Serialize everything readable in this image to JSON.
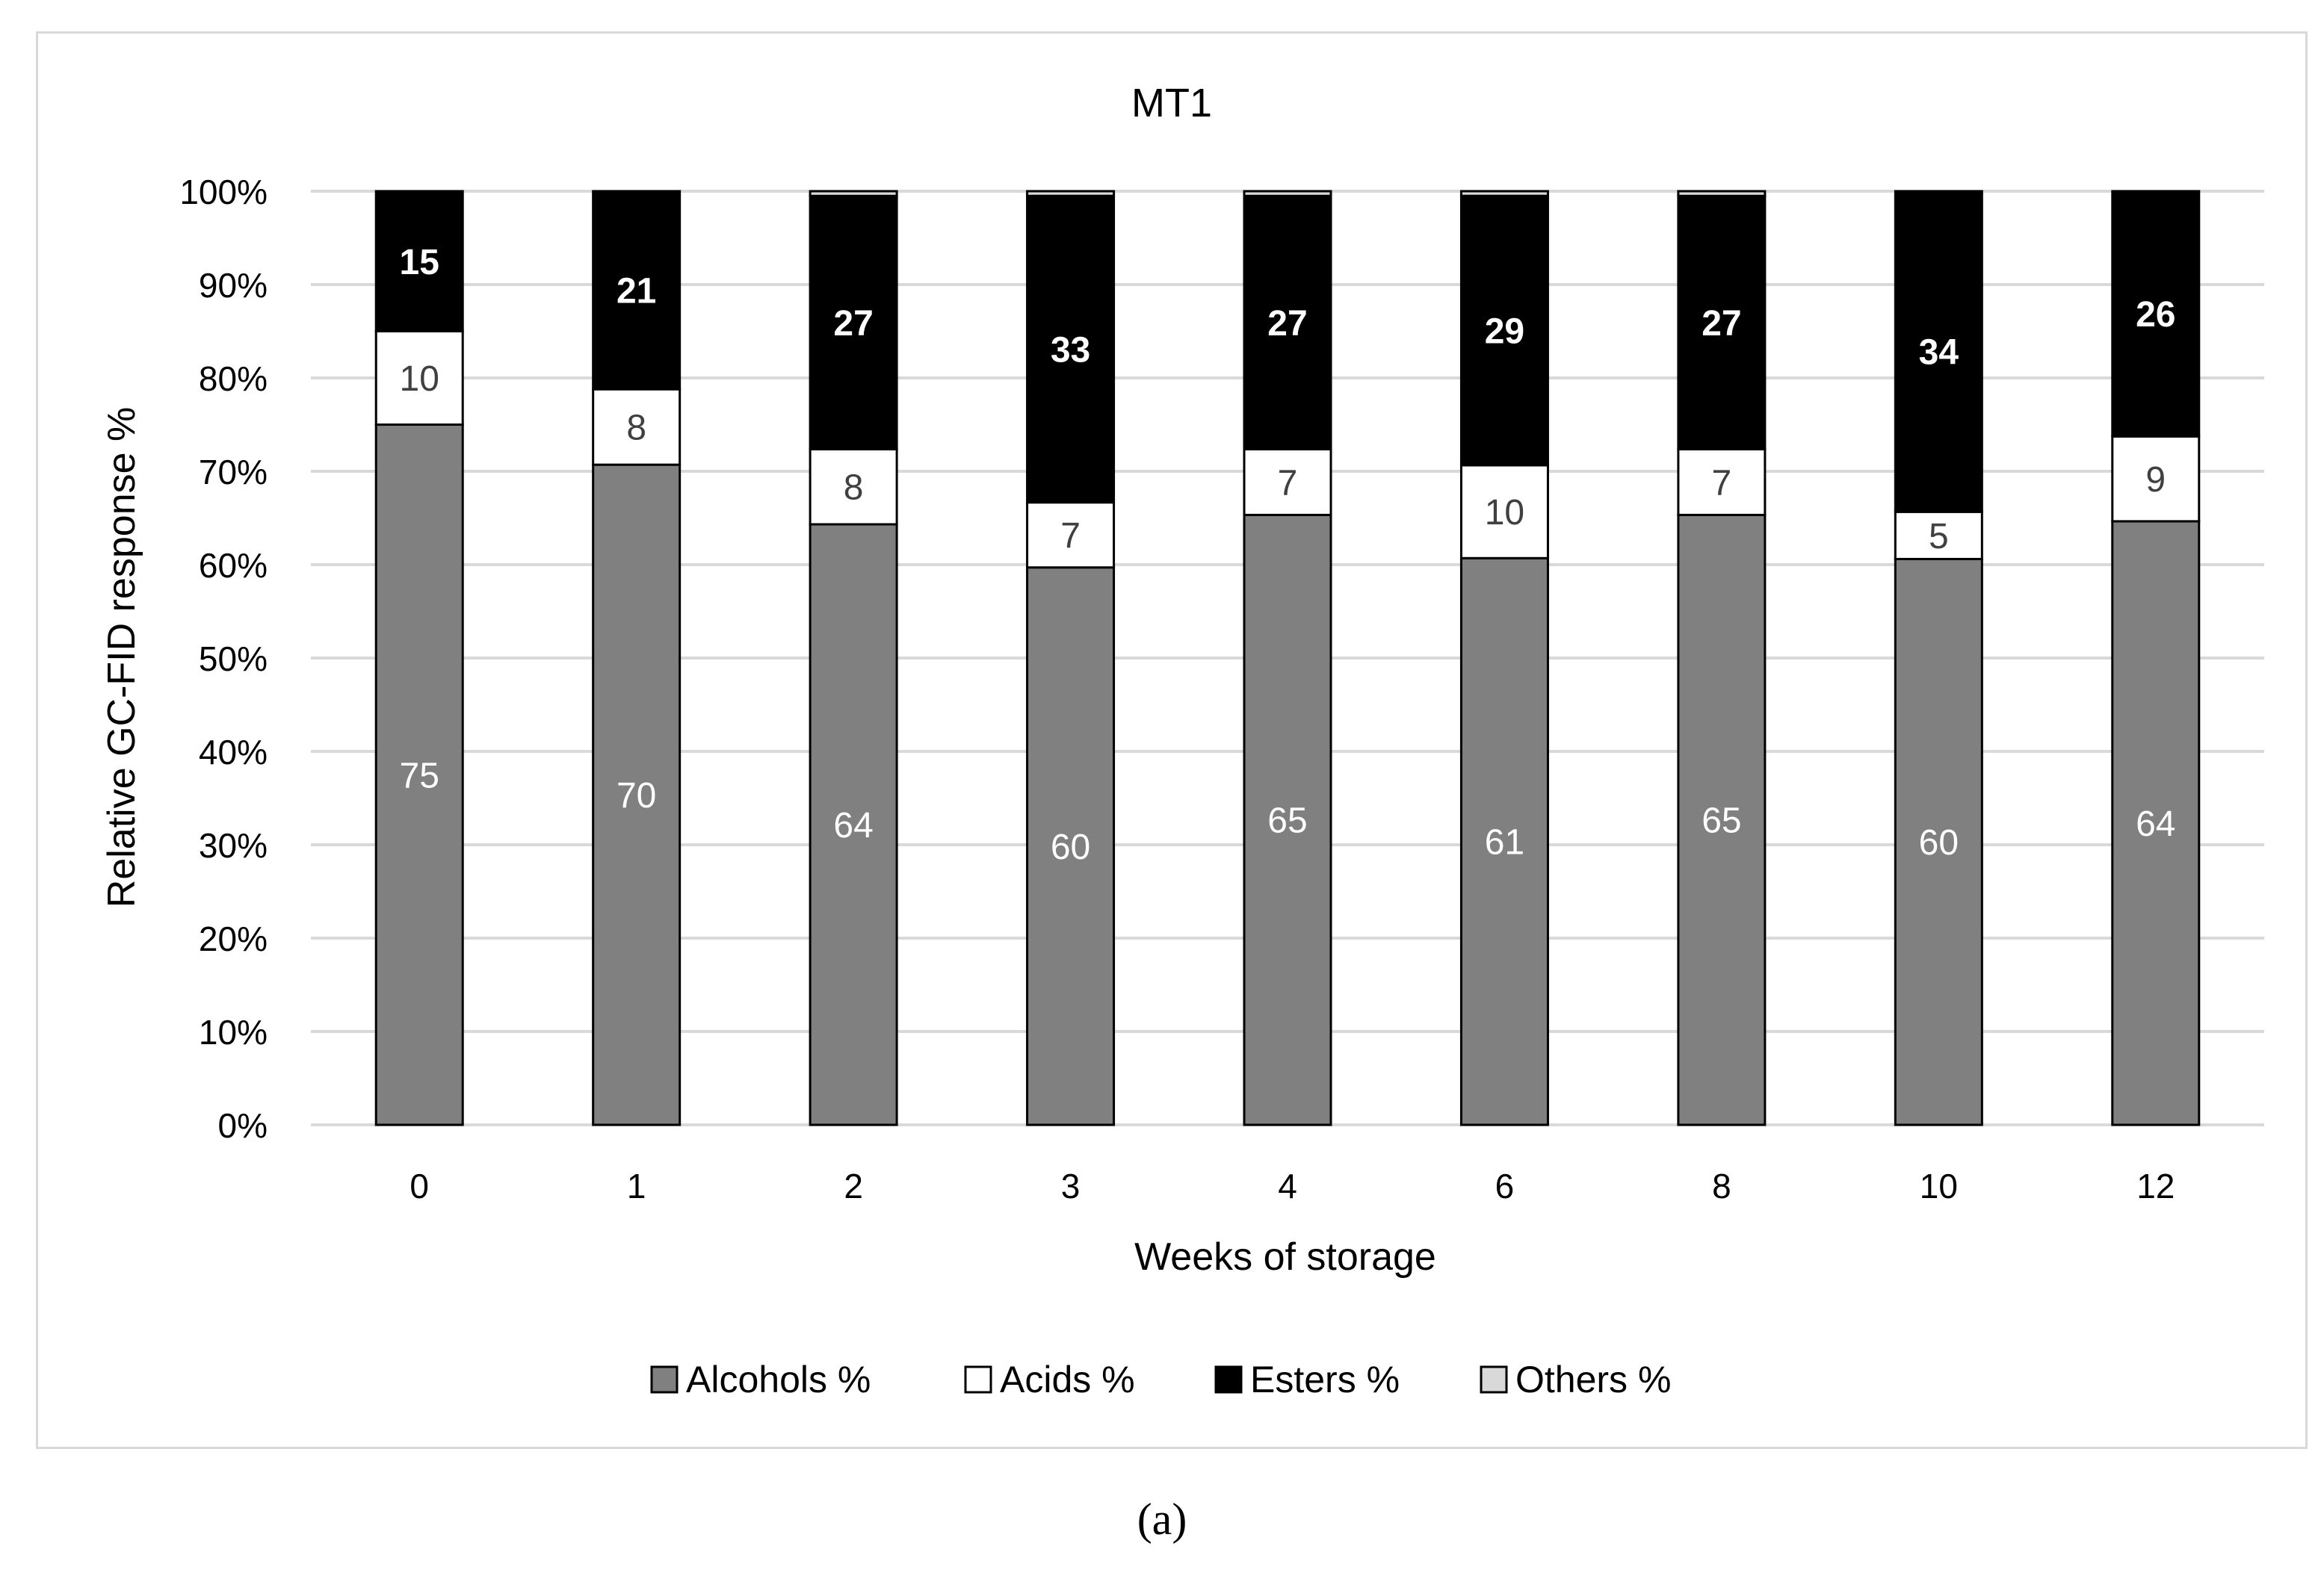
{
  "chart_data": {
    "type": "bar",
    "stacked": true,
    "title": "MT1",
    "xlabel": "Weeks of storage",
    "ylabel": "Relative GC-FID response %",
    "ylim": [
      0,
      100
    ],
    "yticks": [
      "0%",
      "10%",
      "20%",
      "30%",
      "40%",
      "50%",
      "60%",
      "70%",
      "80%",
      "90%",
      "100%"
    ],
    "grid": true,
    "legend_position": "bottom",
    "categories": [
      "0",
      "1",
      "2",
      "3",
      "4",
      "6",
      "8",
      "10",
      "12"
    ],
    "series": [
      {
        "name": "Alcohols %",
        "color": "#808080",
        "label_color": "#ffffff",
        "values": [
          75,
          70,
          64,
          60,
          65,
          61,
          65,
          60,
          64
        ]
      },
      {
        "name": "Acids %",
        "color": "#ffffff",
        "label_color": "#404040",
        "values": [
          10,
          8,
          8,
          7,
          7,
          10,
          7,
          5,
          9
        ]
      },
      {
        "name": "Esters %",
        "color": "#000000",
        "label_color": "#ffffff",
        "values": [
          15,
          21,
          27,
          33,
          27,
          29,
          27,
          34,
          26
        ]
      },
      {
        "name": "Others %",
        "color": "#d9d9d9",
        "label_color": "",
        "values": [
          0,
          0,
          0.5,
          0.5,
          0.5,
          0.5,
          0.5,
          0,
          0
        ]
      }
    ]
  },
  "caption": "(a)"
}
